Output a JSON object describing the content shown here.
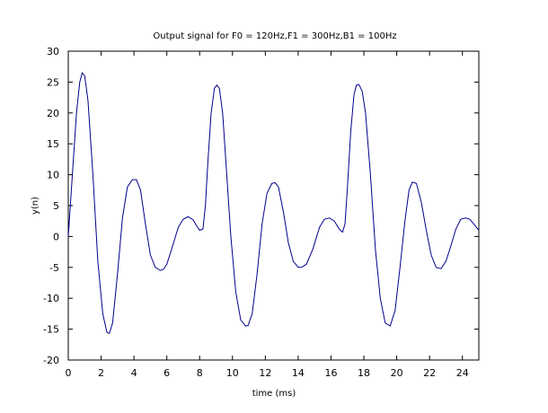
{
  "chart_data": {
    "type": "line",
    "title": "Output signal for F0 = 120Hz,F1 = 300Hz,B1 = 100Hz",
    "xlabel": "time (ms)",
    "ylabel": "y(n)",
    "xlim": [
      0,
      25
    ],
    "ylim": [
      -20,
      30
    ],
    "xticks": [
      0,
      2,
      4,
      6,
      8,
      10,
      12,
      14,
      16,
      18,
      20,
      22,
      24
    ],
    "yticks": [
      -20,
      -15,
      -10,
      -5,
      0,
      5,
      10,
      15,
      20,
      25,
      30
    ],
    "grid": false,
    "line_color": "#00008b",
    "series": [
      {
        "x": [
          0,
          0.3,
          0.5,
          0.7,
          0.85,
          1.0,
          1.2,
          1.5,
          1.8,
          2.1,
          2.35,
          2.5,
          2.7,
          3.0,
          3.3,
          3.6,
          3.9,
          4.15,
          4.4,
          4.7,
          5.0,
          5.3,
          5.6,
          5.8,
          6.0,
          6.3,
          6.7,
          7.0,
          7.3,
          7.6,
          7.8,
          8.0,
          8.2,
          8.35,
          8.5,
          8.7,
          8.9,
          9.05,
          9.2,
          9.4,
          9.6,
          9.9,
          10.2,
          10.5,
          10.8,
          10.95,
          11.2,
          11.5,
          11.8,
          12.1,
          12.4,
          12.6,
          12.8,
          13.1,
          13.4,
          13.7,
          14.0,
          14.2,
          14.5,
          14.9,
          15.3,
          15.6,
          15.9,
          16.2,
          16.5,
          16.7,
          16.85,
          17.0,
          17.2,
          17.4,
          17.55,
          17.7,
          17.9,
          18.1,
          18.4,
          18.7,
          19.0,
          19.3,
          19.6,
          19.9,
          20.2,
          20.5,
          20.75,
          20.95,
          21.2,
          21.5,
          21.8,
          22.1,
          22.4,
          22.7,
          23.0,
          23.3,
          23.6,
          23.9,
          24.2,
          24.45,
          24.7,
          25.0
        ],
        "y": [
          0,
          12,
          20,
          25,
          26.5,
          26,
          22,
          10,
          -4,
          -12.5,
          -15.5,
          -15.7,
          -14,
          -6,
          3,
          8,
          9.2,
          9.2,
          7.5,
          2,
          -3,
          -5,
          -5.5,
          -5.3,
          -4.5,
          -2,
          1.5,
          2.8,
          3.2,
          2.7,
          1.8,
          1,
          1.2,
          5,
          12,
          20,
          24,
          24.5,
          24,
          20,
          12,
          0,
          -9,
          -13.5,
          -14.5,
          -14.4,
          -12.5,
          -6,
          2,
          7,
          8.6,
          8.7,
          8,
          4,
          -1,
          -4,
          -5,
          -5,
          -4.5,
          -2,
          1.5,
          2.8,
          3,
          2.5,
          1.2,
          0.7,
          2,
          8,
          17,
          23,
          24.5,
          24.6,
          23.5,
          20,
          10,
          -2,
          -10,
          -14,
          -14.5,
          -12,
          -5,
          2.5,
          7.5,
          8.8,
          8.6,
          5.5,
          1,
          -3,
          -5,
          -5.2,
          -4,
          -1.5,
          1.2,
          2.8,
          3,
          2.8,
          2,
          1
        ]
      }
    ]
  }
}
